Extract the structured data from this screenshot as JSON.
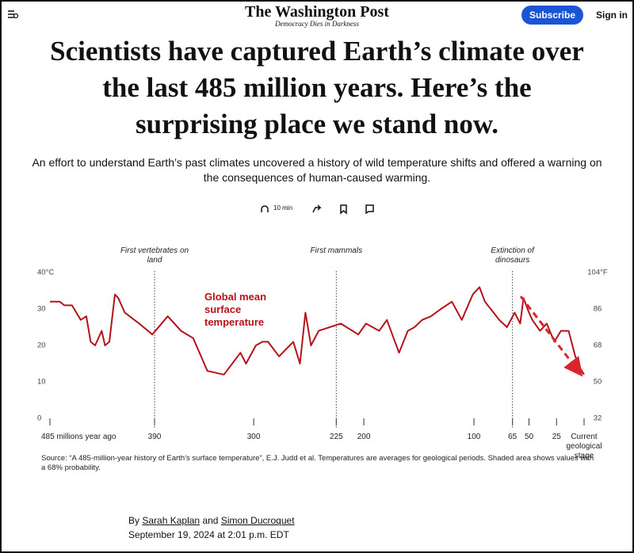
{
  "header": {
    "logo": "The Washington Post",
    "tagline": "Democracy Dies in Darkness",
    "subscribe": "Subscribe",
    "sign_in": "Sign in"
  },
  "article": {
    "headline": "Scientists have captured Earth’s climate over the last 485 million years. Here’s the surprising place we stand now.",
    "dek": "An effort to understand Earth’s past climates uncovered a history of wild temperature shifts and offered a warning on the consequences of human-caused warming.",
    "read_time": "10 min",
    "byline": {
      "by": "By",
      "author1": "Sarah Kaplan",
      "and": "and",
      "author2": "Simon Ducroquet",
      "date": "September 19, 2024 at 2:01 p.m. EDT"
    }
  },
  "chart_data": {
    "type": "line",
    "x": [
      485,
      476,
      472,
      465,
      457,
      452,
      448,
      444,
      438,
      435,
      431,
      426,
      423,
      417,
      404,
      392,
      378,
      366,
      355,
      342,
      327,
      312,
      307,
      298,
      292,
      287,
      277,
      264,
      258,
      253,
      248,
      241,
      221,
      205,
      198,
      186,
      179,
      168,
      160,
      154,
      147,
      139,
      130,
      120,
      111,
      101,
      95,
      90,
      77,
      70,
      63,
      58,
      55,
      50,
      47,
      40,
      34,
      27,
      21,
      14,
      8,
      4,
      0
    ],
    "series": [
      {
        "name": "Global mean surface temperature",
        "color": "#b5121b",
        "values": [
          32,
          32,
          31,
          31,
          27,
          28,
          21,
          20,
          24,
          20,
          21,
          34,
          33,
          29,
          26,
          23,
          28,
          24,
          22,
          13,
          12,
          18,
          15,
          20,
          21,
          21,
          17,
          21,
          15,
          29,
          20,
          24,
          26,
          23,
          26,
          24,
          27,
          18,
          24,
          25,
          27,
          28,
          30,
          32,
          27,
          34,
          36,
          32,
          27,
          25,
          29,
          26,
          33,
          29,
          27,
          24,
          26,
          21,
          24,
          24,
          17,
          14,
          12
        ]
      }
    ],
    "xlim": [
      485,
      0
    ],
    "xticks": [
      {
        "value": 485,
        "label": "485 millions year ago"
      },
      390,
      300,
      225,
      200,
      100,
      65,
      50,
      25,
      {
        "value": 0,
        "label": "Current geological stage"
      }
    ],
    "ylim": [
      0,
      40
    ],
    "yticks": [
      0,
      10,
      20,
      30,
      {
        "value": 40,
        "label": "40°C"
      }
    ],
    "y2lim": [
      32,
      104
    ],
    "y2ticks": [
      32,
      50,
      68,
      86,
      {
        "value": 104,
        "label": "104°F"
      }
    ],
    "annotations": [
      {
        "text": "First vertebrates on land",
        "x": 390
      },
      {
        "text": "First mammals",
        "x": 225
      },
      {
        "text": "Extinction of dinosaurs",
        "x": 65
      }
    ],
    "source": "Source: “A 485-million-year history of Earth’s surface temperature”, E.J. Judd et al. Temperatures are averages for geological periods. Shaded area shows values with a 68% probability."
  }
}
